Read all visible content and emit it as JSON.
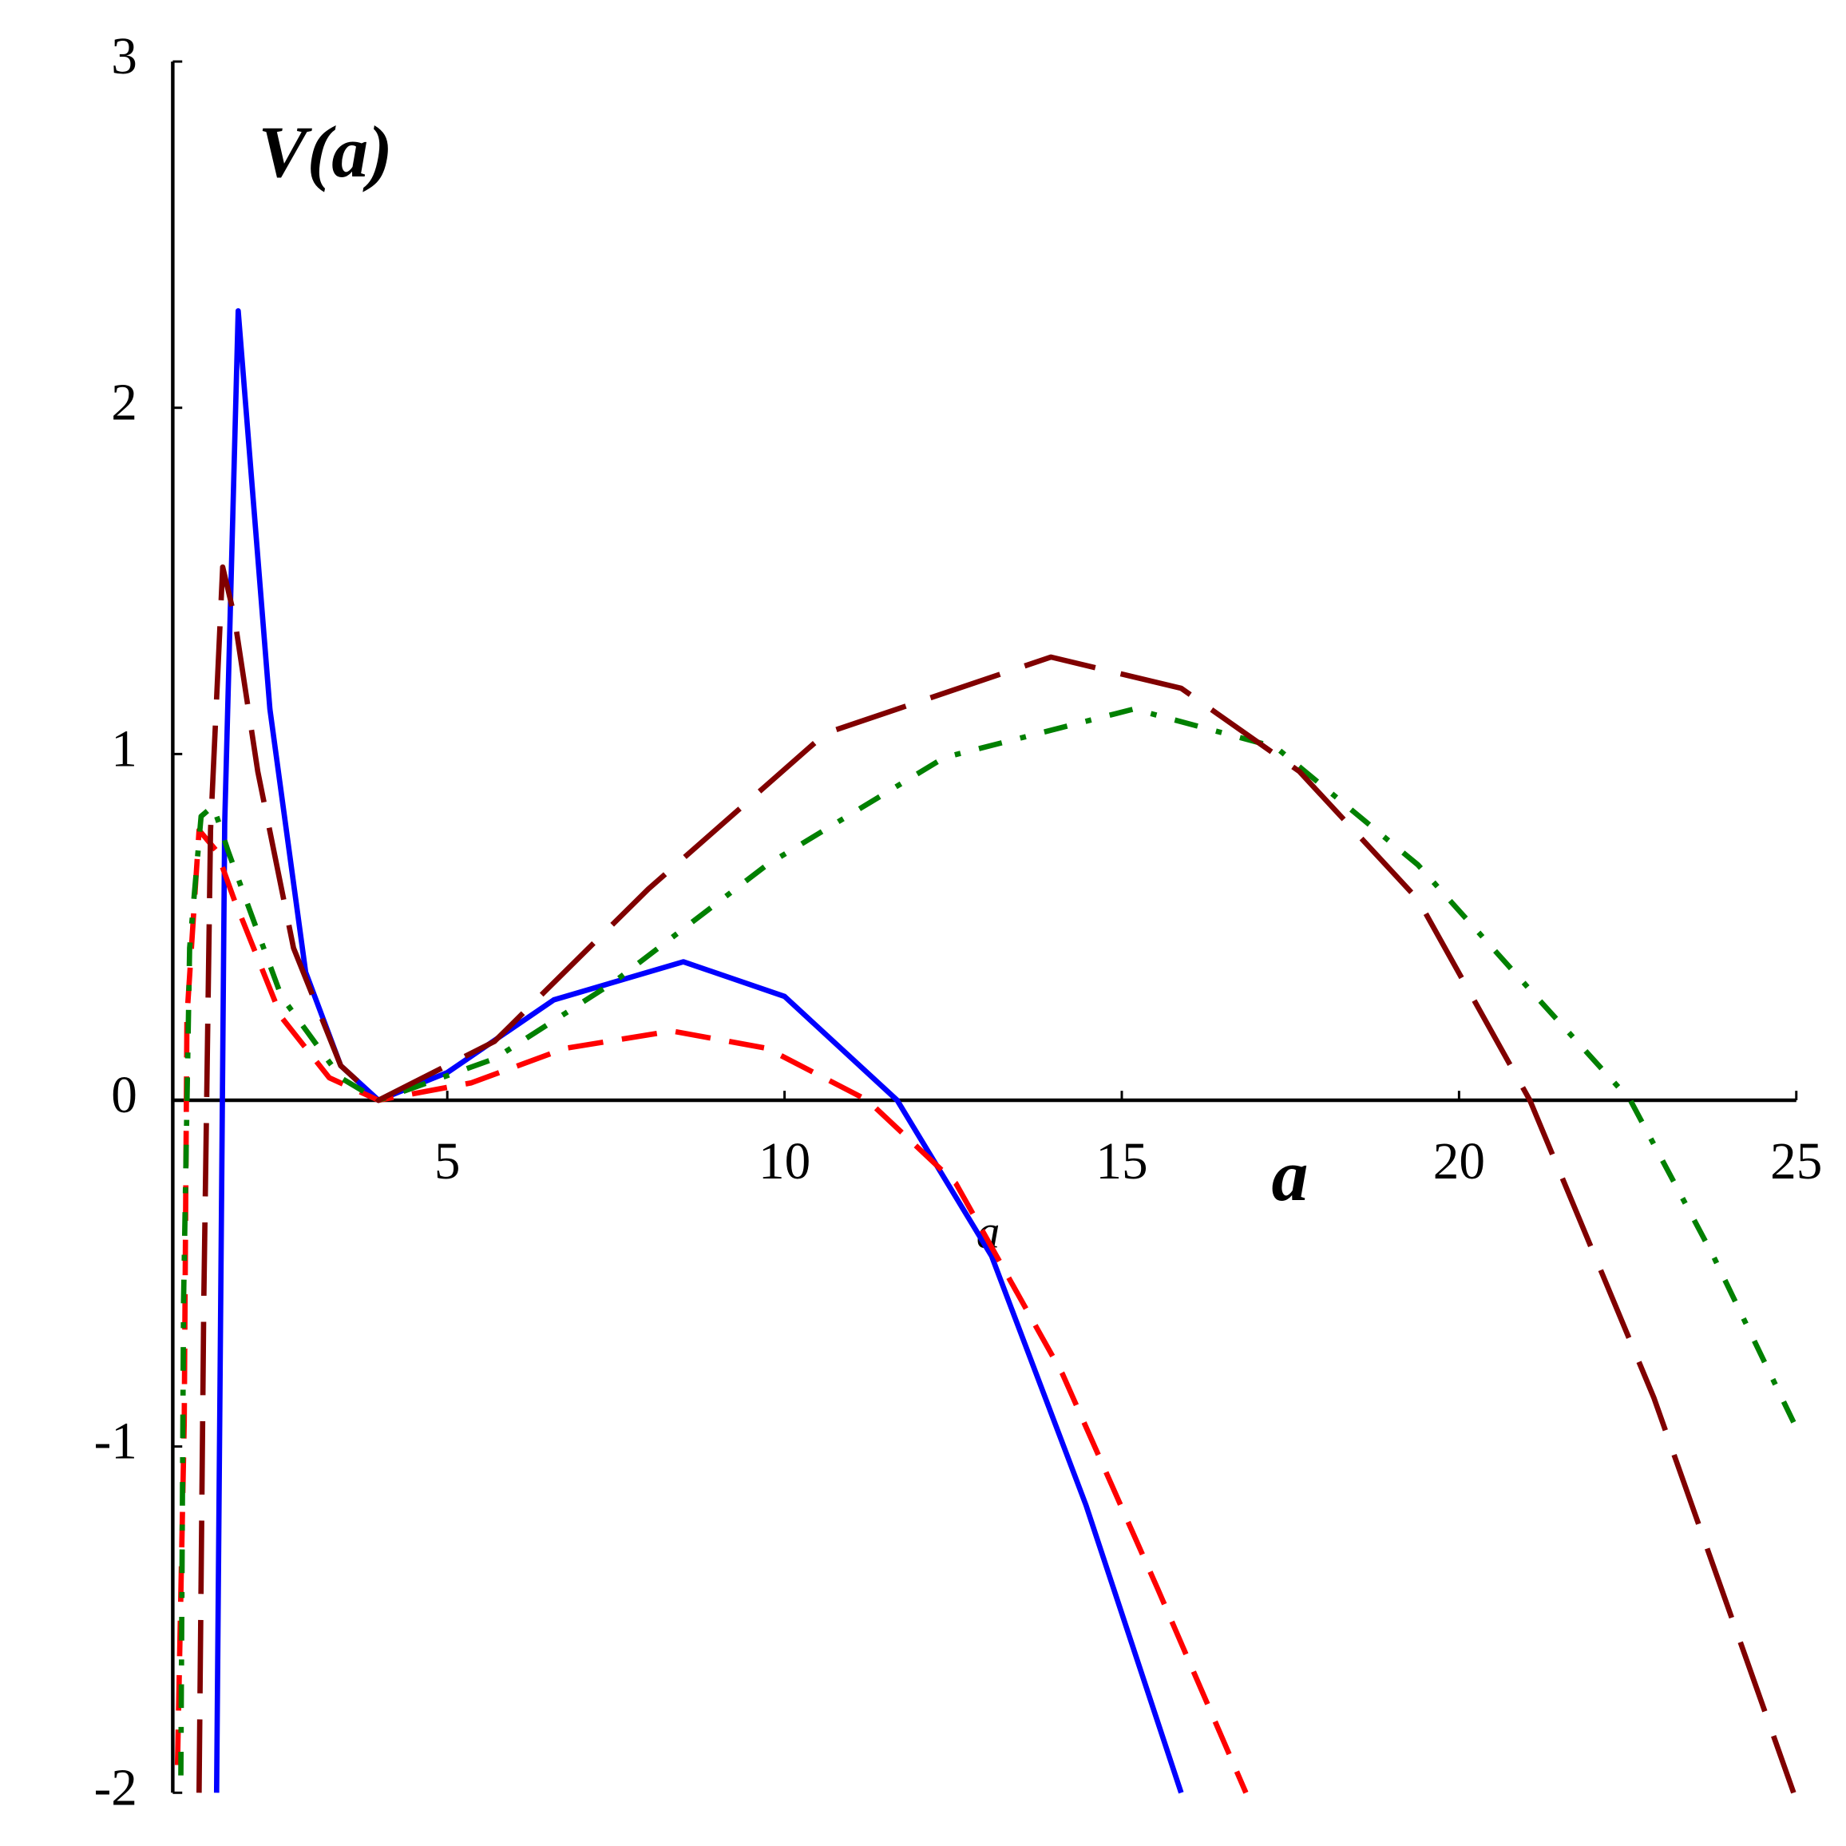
{
  "chart_data": {
    "type": "line",
    "y_label": "V(a)",
    "x_label": "a",
    "annotation": "a",
    "xlim": [
      0.93,
      25
    ],
    "ylim": [
      -2,
      3
    ],
    "xticks": [
      5,
      10,
      15,
      20,
      25
    ],
    "yticks": [
      -2,
      -1,
      0,
      1,
      2,
      3
    ],
    "series": [
      {
        "color": "#0000ff",
        "dash": "solid",
        "x": [
          1.58,
          1.7,
          1.9,
          2.37,
          2.9,
          3.42,
          3.98,
          5,
          6.58,
          8.5,
          10,
          11.67,
          13.07,
          14.47,
          15.88
        ],
        "values": [
          -2,
          0.8,
          2.28,
          1.13,
          0.37,
          0.1,
          0,
          0.08,
          0.29,
          0.4,
          0.3,
          0,
          -0.45,
          -1.17,
          -2
        ]
      },
      {
        "color": "#ff0000",
        "dash": "dash",
        "x": [
          1.0,
          1.1,
          1.14,
          1.32,
          1.58,
          1.84,
          2.54,
          3.25,
          3.98,
          5.35,
          6.75,
          8.33,
          9.74,
          11.23,
          12.54,
          14.12,
          15.53,
          16.84
        ],
        "values": [
          -1.92,
          -0.93,
          0.24,
          0.78,
          0.72,
          0.58,
          0.24,
          0.065,
          0,
          0.05,
          0.15,
          0.2,
          0.15,
          0,
          -0.24,
          -0.79,
          -1.41,
          -2
        ]
      },
      {
        "color": "#008000",
        "dash": "dashdot",
        "x": [
          1.05,
          1.09,
          1.18,
          1.35,
          1.53,
          1.75,
          2.54,
          3.42,
          3.98,
          5.7,
          7.46,
          9.74,
          12.37,
          15.18,
          17.28,
          19.39,
          21.14,
          22.54,
          23.77,
          24.96
        ],
        "values": [
          -1.95,
          -0.58,
          0.44,
          0.82,
          0.85,
          0.72,
          0.3,
          0.065,
          0,
          0.12,
          0.34,
          0.68,
          0.99,
          1.13,
          1.02,
          0.68,
          0.3,
          0,
          -0.45,
          -0.93
        ]
      },
      {
        "color": "#800000",
        "dash": "longdash",
        "x": [
          1.32,
          1.39,
          1.49,
          1.67,
          1.84,
          2.19,
          2.72,
          3.42,
          3.98,
          5.7,
          7.98,
          10.61,
          13.95,
          15.88,
          17.63,
          19.39,
          21.05,
          22.89,
          24.96
        ],
        "values": [
          -2,
          -0.58,
          0.78,
          1.54,
          1.4,
          0.95,
          0.44,
          0.1,
          0,
          0.17,
          0.61,
          1.06,
          1.28,
          1.19,
          0.95,
          0.58,
          0,
          -0.86,
          -2
        ]
      }
    ]
  }
}
